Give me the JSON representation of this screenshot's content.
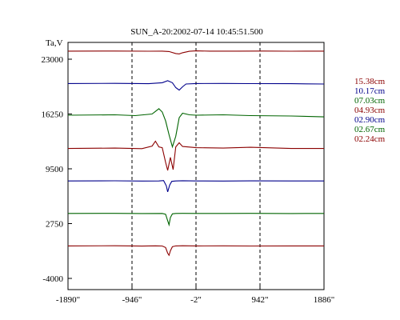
{
  "chart_data": {
    "type": "line",
    "title": "SUN_A-20:2002-07-14 10:45:51.500",
    "ylabel": "Ta,V",
    "xlabel": "",
    "xlim": [
      -1890,
      1886
    ],
    "ylim": [
      -4000,
      25000
    ],
    "x_ticks": [
      {
        "value": -1890,
        "label": "-1890\""
      },
      {
        "value": -946,
        "label": "-946\""
      },
      {
        "value": -2,
        "label": "-2\""
      },
      {
        "value": 942,
        "label": "942\""
      },
      {
        "value": 1886,
        "label": "1886\""
      }
    ],
    "y_ticks": [
      {
        "value": 23000,
        "label": "23000"
      },
      {
        "value": 16250,
        "label": "16250"
      },
      {
        "value": 9500,
        "label": "9500"
      },
      {
        "value": 2750,
        "label": "2750"
      },
      {
        "value": -4000,
        "label": "-4000"
      }
    ],
    "vertical_dashed_lines_x": [
      -946,
      -2,
      942
    ],
    "series": [
      {
        "name": "15.38cm",
        "color": "#8b0000",
        "x": [
          -1890,
          -1200,
          -700,
          -500,
          -400,
          -300,
          -250,
          -200,
          -100,
          0,
          200,
          600,
          1000,
          1400,
          1886
        ],
        "y": [
          24000,
          24010,
          23990,
          24000,
          23950,
          23700,
          23650,
          23800,
          23980,
          24020,
          24000,
          24000,
          24010,
          23990,
          24000
        ]
      },
      {
        "name": "10.17cm",
        "color": "#00008b",
        "x": [
          -1890,
          -1200,
          -700,
          -500,
          -420,
          -350,
          -300,
          -250,
          -200,
          -150,
          0,
          400,
          800,
          1400,
          1886
        ],
        "y": [
          20000,
          20020,
          19980,
          20100,
          20350,
          20100,
          19500,
          19200,
          19600,
          19950,
          20000,
          20010,
          19990,
          19980,
          19950
        ]
      },
      {
        "name": "07.03cm",
        "color": "#006400",
        "x": [
          -1890,
          -1200,
          -900,
          -650,
          -550,
          -500,
          -450,
          -400,
          -350,
          -300,
          -250,
          -200,
          -100,
          0,
          400,
          800,
          1400,
          1886
        ],
        "y": [
          16100,
          16150,
          16050,
          16250,
          16900,
          16500,
          15400,
          13700,
          12200,
          13500,
          15800,
          16350,
          16150,
          16100,
          16150,
          16050,
          16000,
          15900
        ]
      },
      {
        "name": "04.93cm",
        "color": "#8b0000",
        "x": [
          -1890,
          -1200,
          -800,
          -650,
          -600,
          -550,
          -500,
          -450,
          -420,
          -380,
          -340,
          -300,
          -250,
          -200,
          0,
          400,
          800,
          1400,
          1886
        ],
        "y": [
          12000,
          12050,
          11980,
          12300,
          12900,
          12200,
          12100,
          10300,
          9300,
          10900,
          9400,
          12200,
          12700,
          12250,
          12100,
          12050,
          12150,
          12000,
          12000
        ]
      },
      {
        "name": "02.90cm",
        "color": "#00008b",
        "x": [
          -1890,
          -1200,
          -800,
          -550,
          -480,
          -440,
          -420,
          -390,
          -360,
          -300,
          -200,
          0,
          400,
          800,
          1400,
          1886
        ],
        "y": [
          8000,
          8020,
          7990,
          8000,
          8050,
          7400,
          6650,
          7500,
          7950,
          8000,
          8030,
          8000,
          7990,
          8010,
          8000,
          8000
        ]
      },
      {
        "name": "02.67cm",
        "color": "#006400",
        "x": [
          -1890,
          -1200,
          -800,
          -500,
          -450,
          -420,
          -400,
          -380,
          -350,
          -300,
          -200,
          0,
          400,
          800,
          1400,
          1886
        ],
        "y": [
          4000,
          4010,
          3990,
          4000,
          3900,
          3100,
          2600,
          3500,
          3950,
          4000,
          4010,
          4000,
          4000,
          4010,
          3990,
          4000
        ]
      },
      {
        "name": "02.24cm",
        "color": "#8b0000",
        "x": [
          -1890,
          -1200,
          -800,
          -600,
          -500,
          -450,
          -420,
          -400,
          -380,
          -350,
          -300,
          -200,
          0,
          400,
          800,
          1400,
          1886
        ],
        "y": [
          0,
          20,
          -20,
          10,
          -10,
          -200,
          -900,
          -1150,
          -600,
          -100,
          0,
          20,
          0,
          10,
          -10,
          0,
          0
        ]
      }
    ],
    "grid": false,
    "legend_placement": "right"
  }
}
